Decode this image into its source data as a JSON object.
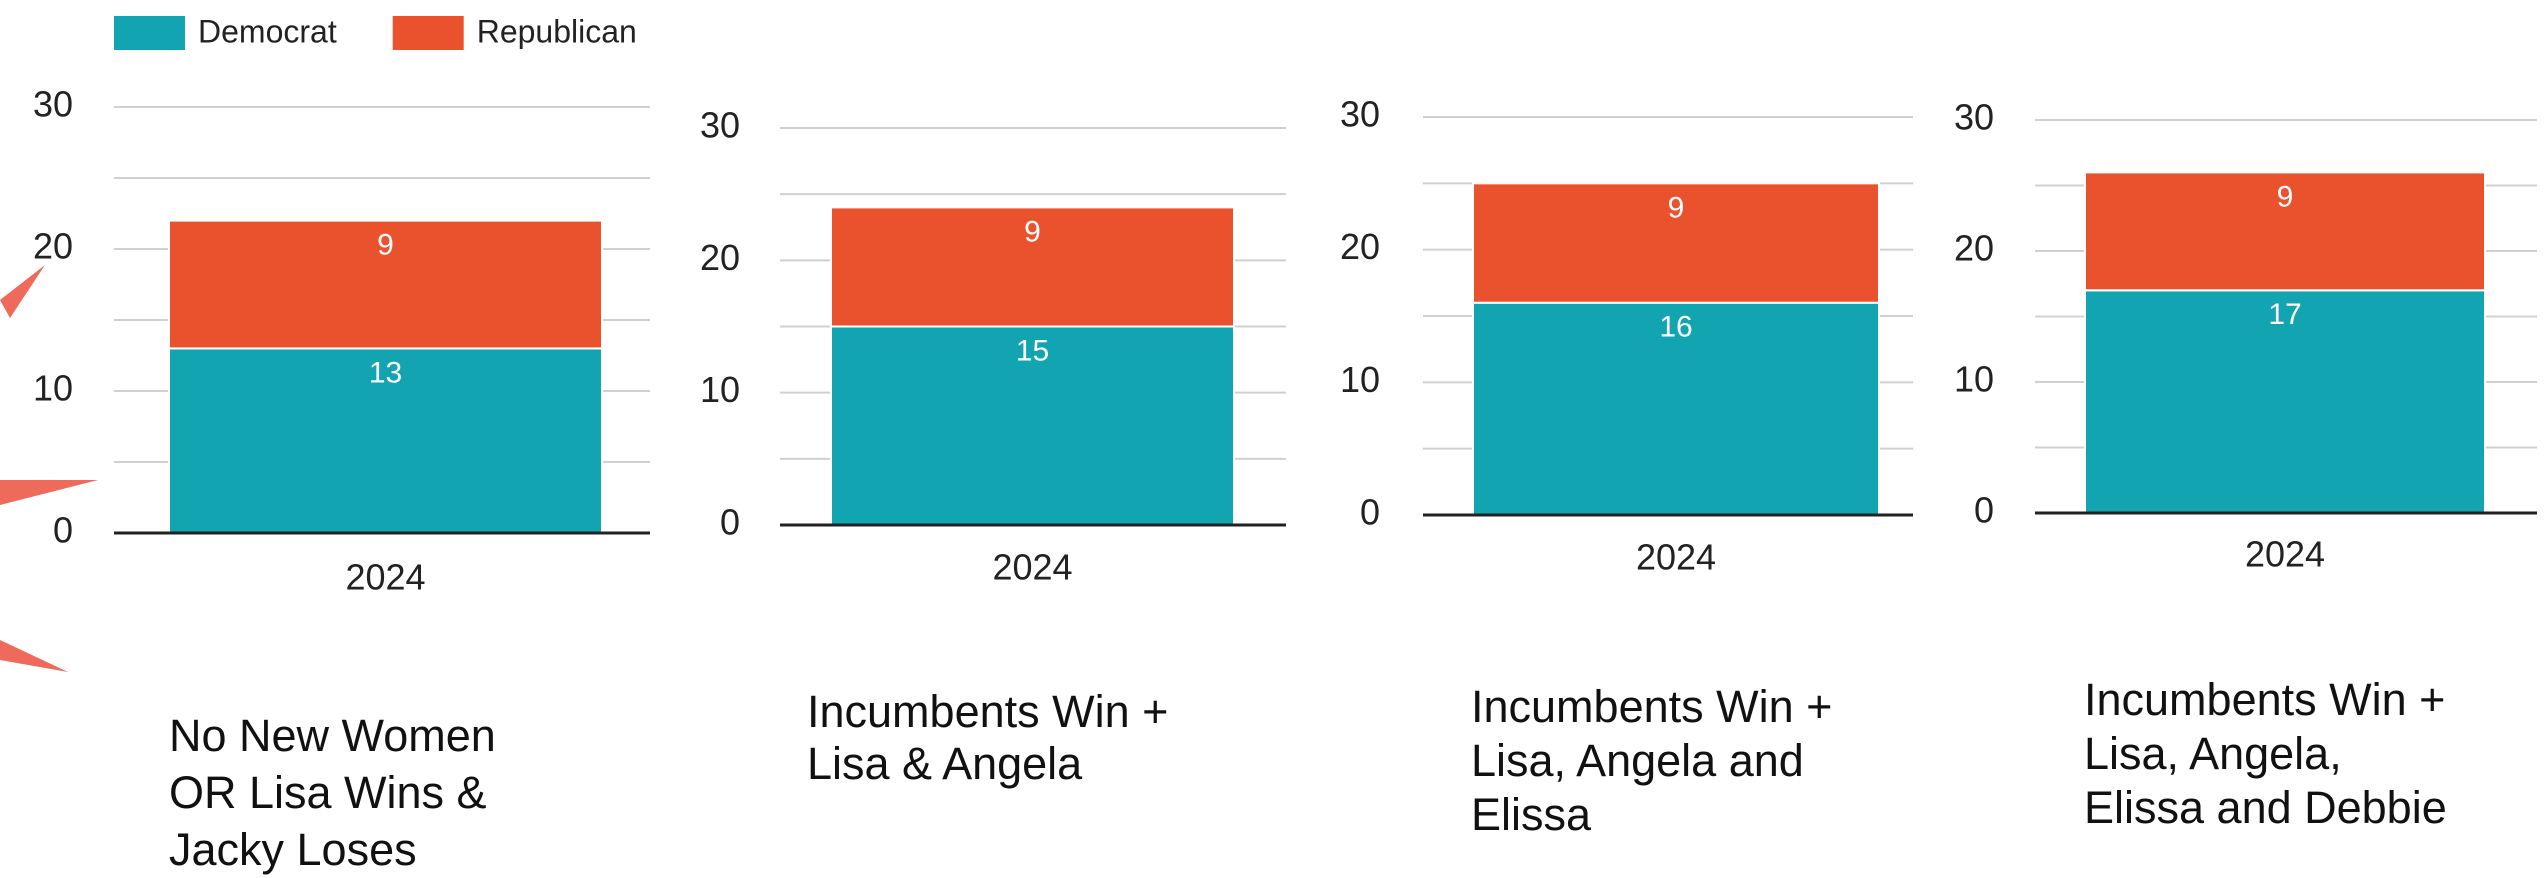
{
  "chart_data": [
    {
      "type": "bar",
      "stacked": true,
      "categories": [
        "2024"
      ],
      "series": [
        {
          "name": "Democrat",
          "color": "#12a4b0",
          "values": [
            13
          ]
        },
        {
          "name": "Republican",
          "color": "#ea522d",
          "values": [
            9
          ]
        }
      ],
      "ylim": [
        0,
        30
      ],
      "yticks": [
        0,
        10,
        20,
        30
      ],
      "minor_yticks": [
        5,
        15,
        25
      ],
      "grid": true,
      "legend": "top-left",
      "caption": [
        "No New Women",
        "OR Lisa Wins &",
        "Jacky Loses"
      ]
    },
    {
      "type": "bar",
      "stacked": true,
      "categories": [
        "2024"
      ],
      "series": [
        {
          "name": "Democrat",
          "color": "#12a4b0",
          "values": [
            15
          ]
        },
        {
          "name": "Republican",
          "color": "#ea522d",
          "values": [
            9
          ]
        }
      ],
      "ylim": [
        0,
        30
      ],
      "yticks": [
        0,
        10,
        20,
        30
      ],
      "minor_yticks": [
        5,
        15,
        25
      ],
      "grid": true,
      "caption": [
        "Incumbents Win +",
        "Lisa & Angela"
      ]
    },
    {
      "type": "bar",
      "stacked": true,
      "categories": [
        "2024"
      ],
      "series": [
        {
          "name": "Democrat",
          "color": "#12a4b0",
          "values": [
            16
          ]
        },
        {
          "name": "Republican",
          "color": "#ea522d",
          "values": [
            9
          ]
        }
      ],
      "ylim": [
        0,
        30
      ],
      "yticks": [
        0,
        10,
        20,
        30
      ],
      "minor_yticks": [
        5,
        15,
        25
      ],
      "grid": true,
      "caption": [
        "Incumbents Win +",
        "Lisa, Angela and",
        "Elissa"
      ]
    },
    {
      "type": "bar",
      "stacked": true,
      "categories": [
        "2024"
      ],
      "series": [
        {
          "name": "Democrat",
          "color": "#12a4b0",
          "values": [
            17
          ]
        },
        {
          "name": "Republican",
          "color": "#ea522d",
          "values": [
            9
          ]
        }
      ],
      "ylim": [
        0,
        30
      ],
      "yticks": [
        0,
        10,
        20,
        30
      ],
      "minor_yticks": [
        5,
        15,
        25
      ],
      "grid": true,
      "caption": [
        "Incumbents Win +",
        "Lisa, Angela,",
        "Elissa and Debbie"
      ]
    }
  ]
}
